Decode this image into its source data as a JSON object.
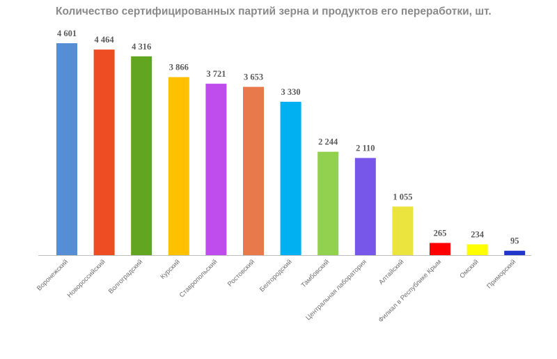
{
  "chart_data": {
    "type": "bar",
    "title": "Количество сертифицированных партий зерна и продуктов его переработки, шт.",
    "categories": [
      "Воронежский",
      "Новороссийский",
      "Волгоградский",
      "Курский",
      "Ставропольский",
      "Ростовский",
      "Белгородский",
      "Тамбовский",
      "Центральная лаборатория",
      "Алтайский",
      "Филиал в Республике Крым",
      "Омский",
      "Приморский"
    ],
    "values": [
      4601,
      4464,
      4316,
      3866,
      3721,
      3653,
      3330,
      2244,
      2110,
      1055,
      265,
      234,
      95
    ],
    "value_labels": [
      "4 601",
      "4 464",
      "4 316",
      "3 866",
      "3 721",
      "3 653",
      "3 330",
      "2 244",
      "2 110",
      "1 055",
      "265",
      "234",
      "95"
    ],
    "colors": [
      "#558ed5",
      "#ee4c22",
      "#62a520",
      "#ffc000",
      "#bf4ced",
      "#e8794a",
      "#00b0f0",
      "#92d050",
      "#7657e9",
      "#ebe43f",
      "#ff0000",
      "#ffff00",
      "#2035c9"
    ],
    "ylim": [
      0,
      4601
    ],
    "grid": false,
    "legend": "none"
  }
}
